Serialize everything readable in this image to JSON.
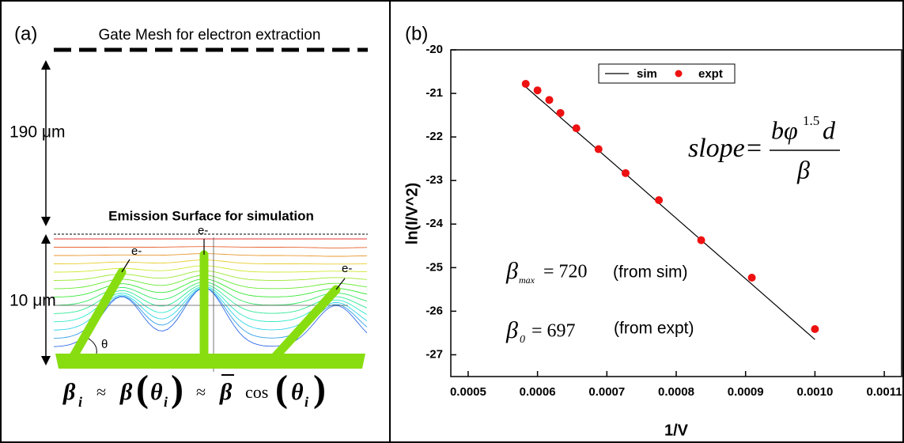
{
  "panel_a": {
    "label": "(a)",
    "gate_label": "Gate Mesh for electron extraction",
    "gap_label": "190 μm",
    "surface_label": "Emission Surface for simulation",
    "height_label": "10 μm",
    "electron_labels": [
      "e-",
      "e-",
      "e-"
    ],
    "angle_label": "θ",
    "formula": {
      "beta_i": "β",
      "sub_i": "i",
      "approx_1": "≈",
      "beta_theta": "β",
      "theta_i": "θ",
      "sub_theta_i": "i",
      "approx_2": "≈",
      "beta_bar": "β",
      "cos": "cos",
      "theta_i_2": "θ",
      "sub_theta_i_2": "i"
    }
  },
  "chart_data": {
    "type": "scatter",
    "panel_label": "(b)",
    "x_label": "1/V",
    "y_label": "ln(I/V^2)",
    "x": [
      0.000583,
      0.0006,
      0.000617,
      0.000633,
      0.000656,
      0.000688,
      0.000727,
      0.000775,
      0.000836,
      0.000909,
      0.001
    ],
    "series": [
      {
        "name": "sim",
        "color": "#000000",
        "style": "line",
        "values": [
          -20.85,
          -21.09,
          -21.32,
          -21.55,
          -21.87,
          -22.31,
          -22.85,
          -23.52,
          -24.37,
          -25.38,
          -26.65
        ]
      },
      {
        "name": "expt",
        "color": "#ee1111",
        "style": "points",
        "values": [
          -20.78,
          -20.93,
          -21.15,
          -21.45,
          -21.8,
          -22.28,
          -22.83,
          -23.45,
          -24.37,
          -25.23,
          -26.41
        ]
      }
    ],
    "xlim": [
      0.000475,
      0.001125
    ],
    "ylim": [
      -27.5,
      -20
    ],
    "xticks": [
      0.0005,
      0.0006,
      0.0007,
      0.0008,
      0.0009,
      {
        "value": 0.001,
        "label": "0.0010"
      },
      0.0011
    ],
    "yticks": [
      -20,
      -21,
      -22,
      -23,
      -24,
      -25,
      -26,
      -27
    ],
    "legend": "top",
    "annotations": {
      "slope": {
        "lhs": "slope=",
        "numerator": "bφ",
        "exponent": "1.5",
        "numerator_tail": "d",
        "denominator": "β"
      },
      "beta_max": {
        "symbol": "β",
        "subscript": "max",
        "relation": "= 720",
        "note": "(from sim)"
      },
      "beta_0": {
        "symbol": "β",
        "subscript": "0",
        "relation": "= 697",
        "note": "(from expt)"
      }
    }
  }
}
